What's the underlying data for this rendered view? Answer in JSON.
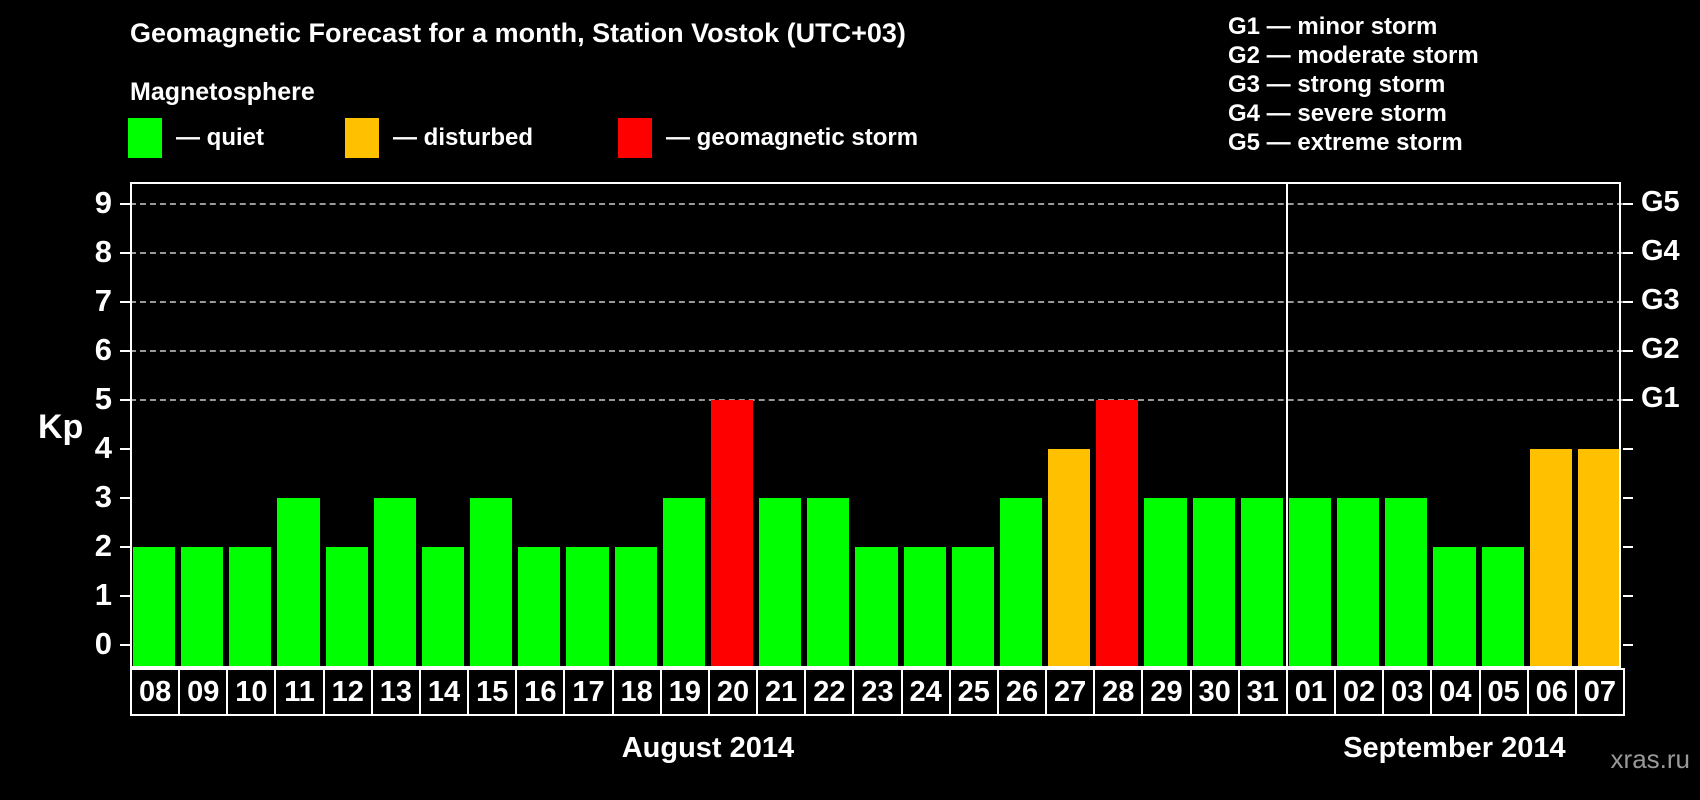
{
  "header": {
    "title": "Geomagnetic Forecast for a month, Station Vostok (UTC+03)",
    "subtitle": "Magnetosphere"
  },
  "legend": {
    "items": [
      {
        "key": "quiet",
        "label": "— quiet",
        "color": "#00FF00"
      },
      {
        "key": "disturbed",
        "label": "— disturbed",
        "color": "#FFC000"
      },
      {
        "key": "storm",
        "label": "— geomagnetic storm",
        "color": "#FF0000"
      }
    ]
  },
  "storm_scale": {
    "lines": [
      "G1 — minor storm",
      "G2 — moderate storm",
      "G3 — strong storm",
      "G4 — severe storm",
      "G5 — extreme storm"
    ]
  },
  "chart_data": {
    "type": "bar",
    "title": "Geomagnetic Forecast for a month, Station Vostok (UTC+03)",
    "ylabel": "Kp",
    "ylim": [
      0,
      9
    ],
    "yticks": [
      0,
      1,
      2,
      3,
      4,
      5,
      6,
      7,
      8,
      9
    ],
    "gridlines_kp": [
      5,
      6,
      7,
      8,
      9
    ],
    "grid": "dashed horizontal lines at storm levels G1-G5",
    "legend_position": "top",
    "right_axis_levels": [
      {
        "label": "G1",
        "kp": 5
      },
      {
        "label": "G2",
        "kp": 6
      },
      {
        "label": "G3",
        "kp": 7
      },
      {
        "label": "G4",
        "kp": 8
      },
      {
        "label": "G5",
        "kp": 9
      }
    ],
    "status_colors": {
      "quiet": "#00FF00",
      "disturbed": "#FFC000",
      "storm": "#FF0000"
    },
    "months": [
      {
        "label": "August 2014",
        "days": 24
      },
      {
        "label": "September 2014",
        "days": 7
      }
    ],
    "bars": [
      {
        "day": "08",
        "kp": 2,
        "status": "quiet"
      },
      {
        "day": "09",
        "kp": 2,
        "status": "quiet"
      },
      {
        "day": "10",
        "kp": 2,
        "status": "quiet"
      },
      {
        "day": "11",
        "kp": 3,
        "status": "quiet"
      },
      {
        "day": "12",
        "kp": 2,
        "status": "quiet"
      },
      {
        "day": "13",
        "kp": 3,
        "status": "quiet"
      },
      {
        "day": "14",
        "kp": 2,
        "status": "quiet"
      },
      {
        "day": "15",
        "kp": 3,
        "status": "quiet"
      },
      {
        "day": "16",
        "kp": 2,
        "status": "quiet"
      },
      {
        "day": "17",
        "kp": 2,
        "status": "quiet"
      },
      {
        "day": "18",
        "kp": 2,
        "status": "quiet"
      },
      {
        "day": "19",
        "kp": 3,
        "status": "quiet"
      },
      {
        "day": "20",
        "kp": 5,
        "status": "storm"
      },
      {
        "day": "21",
        "kp": 3,
        "status": "quiet"
      },
      {
        "day": "22",
        "kp": 3,
        "status": "quiet"
      },
      {
        "day": "23",
        "kp": 2,
        "status": "quiet"
      },
      {
        "day": "24",
        "kp": 2,
        "status": "quiet"
      },
      {
        "day": "25",
        "kp": 2,
        "status": "quiet"
      },
      {
        "day": "26",
        "kp": 3,
        "status": "quiet"
      },
      {
        "day": "27",
        "kp": 4,
        "status": "disturbed"
      },
      {
        "day": "28",
        "kp": 5,
        "status": "storm"
      },
      {
        "day": "29",
        "kp": 3,
        "status": "quiet"
      },
      {
        "day": "30",
        "kp": 3,
        "status": "quiet"
      },
      {
        "day": "31",
        "kp": 3,
        "status": "quiet"
      },
      {
        "day": "01",
        "kp": 3,
        "status": "quiet"
      },
      {
        "day": "02",
        "kp": 3,
        "status": "quiet"
      },
      {
        "day": "03",
        "kp": 3,
        "status": "quiet"
      },
      {
        "day": "04",
        "kp": 2,
        "status": "quiet"
      },
      {
        "day": "05",
        "kp": 2,
        "status": "quiet"
      },
      {
        "day": "06",
        "kp": 4,
        "status": "disturbed"
      },
      {
        "day": "07",
        "kp": 4,
        "status": "disturbed"
      }
    ]
  },
  "watermark": "xras.ru"
}
